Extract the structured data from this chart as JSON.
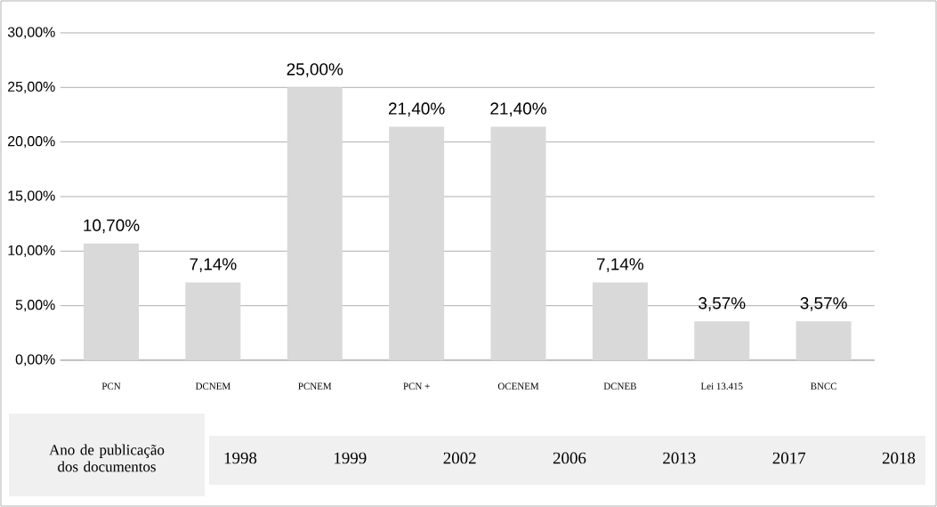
{
  "chart_data": {
    "type": "bar",
    "categories": [
      "PCN",
      "DCNEM",
      "PCNEM",
      "PCN +",
      "OCENEM",
      "DCNEB",
      "Lei 13.415",
      "BNCC"
    ],
    "values": [
      10.7,
      7.14,
      25,
      21.4,
      21.4,
      7.14,
      3.57,
      3.57
    ],
    "value_labels": [
      "10,70%",
      "7,14%",
      "25,00%",
      "21,40%",
      "21,40%",
      "7,14%",
      "3,57%",
      "3,57%"
    ],
    "color": "#d9d9d9",
    "ylim": [
      0,
      30
    ],
    "yticks": [
      {
        "value": 0,
        "label": "0,00%"
      },
      {
        "value": 5,
        "label": "5,00%"
      },
      {
        "value": 10,
        "label": "10,00%"
      },
      {
        "value": 15,
        "label": "15,00%"
      },
      {
        "value": 20,
        "label": "20,00%"
      },
      {
        "value": 25,
        "label": "25,00%"
      },
      {
        "value": 30,
        "label": "30,00%"
      }
    ],
    "grid": "y",
    "annotations": [
      "Ano de publicação dos documentos",
      "1998",
      "1999",
      "2002",
      "2006",
      "2013",
      "2017",
      "2018"
    ]
  }
}
